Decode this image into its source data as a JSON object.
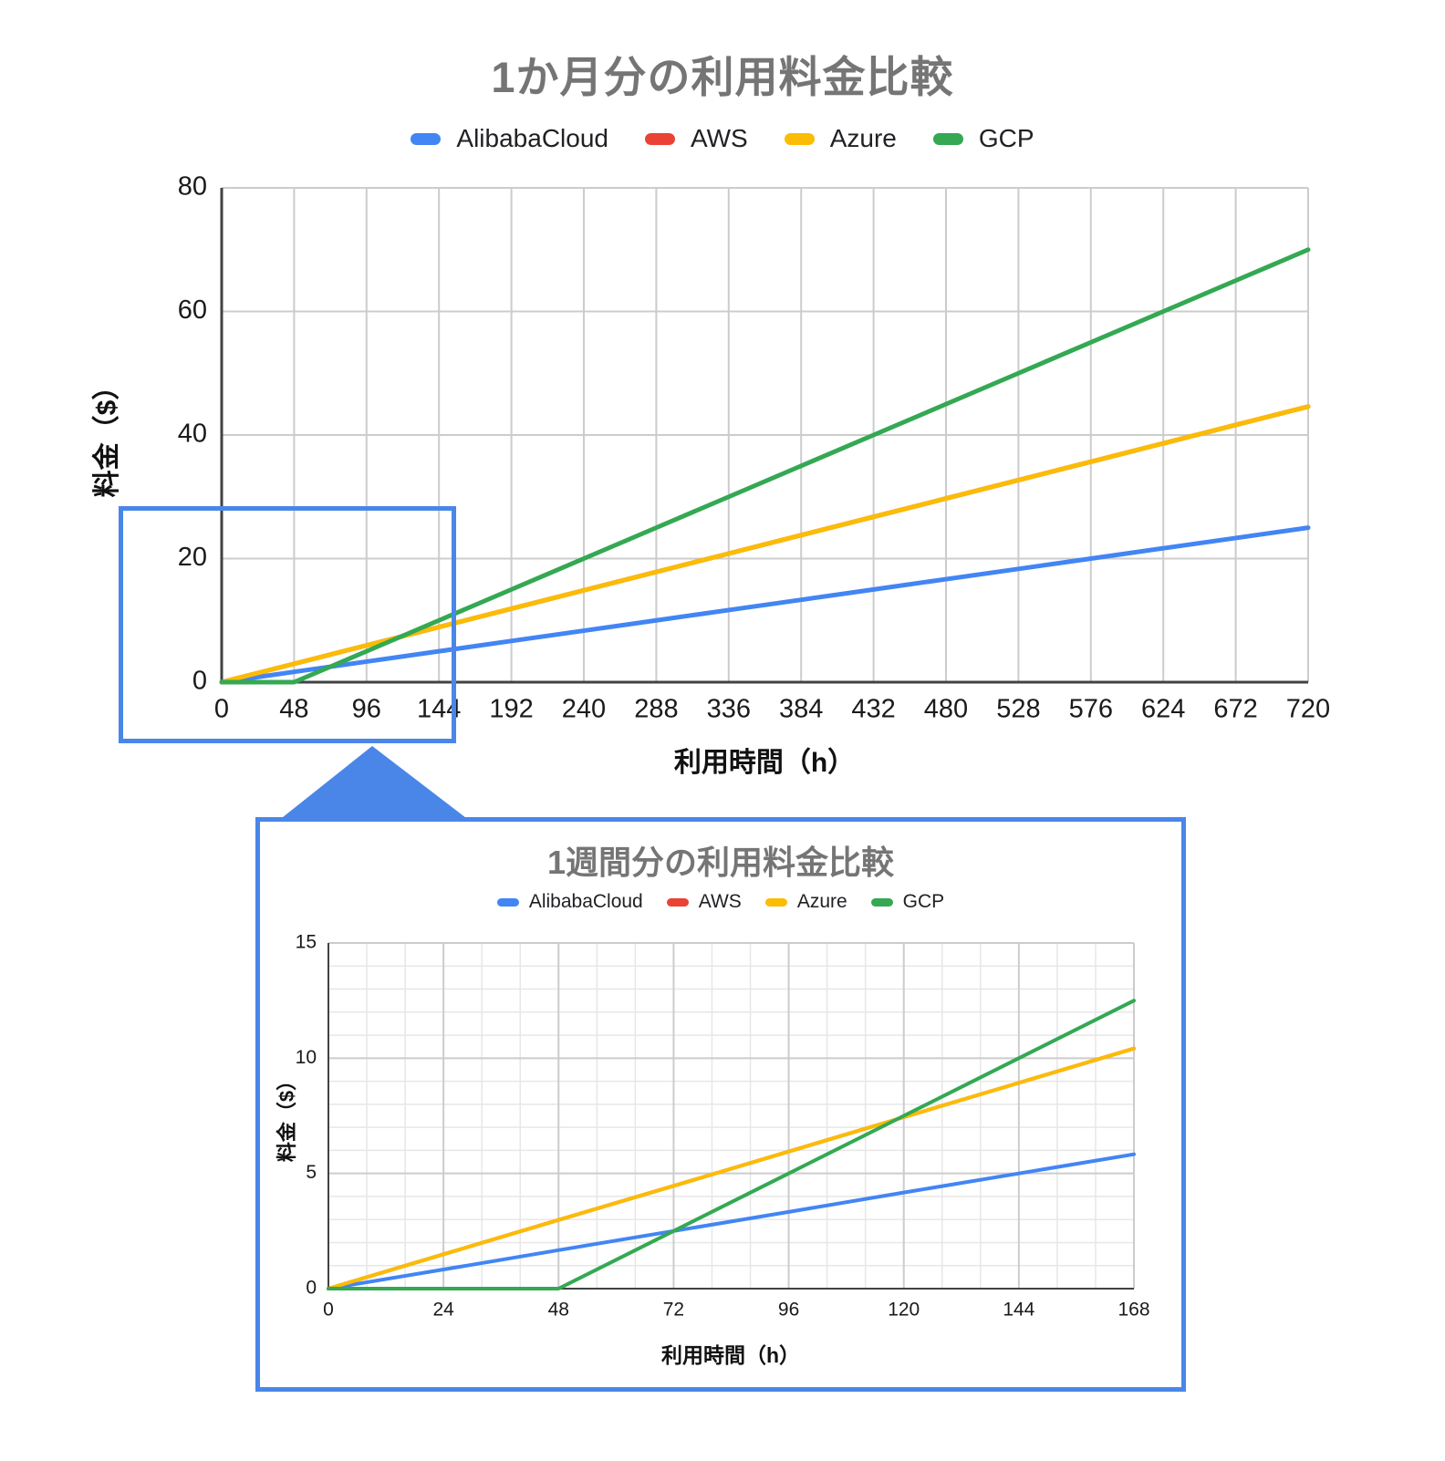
{
  "zoom_callout": {
    "color": "#4a86e8",
    "purpose": "highlights the 0-168h region of the monthly chart that is enlarged in the weekly inset chart"
  },
  "palette": {
    "title_gray": "#757575",
    "tick_color": "#1a1a1a",
    "axis_color": "#424242",
    "grid_major": "#cccccc",
    "grid_minor": "#e7e7e7"
  },
  "chart_data": [
    {
      "id": "monthly",
      "type": "line",
      "title": "1か月分の利用料金比較",
      "xlabel": "利用時間（h）",
      "ylabel": "料金（$）",
      "xlim": [
        0,
        720
      ],
      "ylim": [
        0,
        80
      ],
      "x_ticks": [
        0,
        48,
        96,
        144,
        192,
        240,
        288,
        336,
        384,
        432,
        480,
        528,
        576,
        624,
        672,
        720
      ],
      "y_ticks": [
        0,
        20,
        40,
        60,
        80
      ],
      "grid": {
        "x_major": 48,
        "y_major": 20
      },
      "legend_position": "top",
      "x": [
        0,
        48,
        96,
        144,
        192,
        240,
        288,
        336,
        384,
        432,
        480,
        528,
        576,
        624,
        672,
        720
      ],
      "series": [
        {
          "name": "AlibabaCloud",
          "color": "#4285F4",
          "values": [
            0,
            1.67,
            3.33,
            5,
            6.67,
            8.33,
            10,
            11.67,
            13.33,
            15,
            16.67,
            18.33,
            20,
            21.67,
            23.33,
            25
          ]
        },
        {
          "name": "AWS",
          "color": "#EA4335",
          "values": [
            0,
            2.97,
            5.95,
            8.92,
            11.89,
            14.87,
            17.84,
            20.81,
            23.79,
            26.76,
            29.73,
            32.71,
            35.68,
            38.65,
            41.63,
            44.6
          ]
        },
        {
          "name": "Azure",
          "color": "#FBBC04",
          "values": [
            0,
            2.97,
            5.95,
            8.92,
            11.89,
            14.87,
            17.84,
            20.81,
            23.79,
            26.76,
            29.73,
            32.71,
            35.68,
            38.65,
            41.63,
            44.6
          ]
        },
        {
          "name": "GCP",
          "color": "#34A853",
          "values": [
            0,
            0,
            5,
            10,
            15,
            20,
            25,
            30,
            35,
            40,
            45,
            50,
            55,
            60,
            65,
            70
          ]
        }
      ]
    },
    {
      "id": "weekly",
      "type": "line",
      "title": "1週間分の利用料金比較",
      "xlabel": "利用時間（h）",
      "ylabel": "料金（$）",
      "xlim": [
        0,
        168
      ],
      "ylim": [
        0,
        15
      ],
      "x_ticks": [
        0,
        24,
        48,
        72,
        96,
        120,
        144,
        168
      ],
      "y_ticks": [
        0,
        5,
        10,
        15
      ],
      "grid": {
        "x_major": 24,
        "x_minor": 8,
        "y_major": 5,
        "y_minor": 1
      },
      "legend_position": "top",
      "x": [
        0,
        24,
        48,
        72,
        96,
        120,
        144,
        168
      ],
      "series": [
        {
          "name": "AlibabaCloud",
          "color": "#4285F4",
          "values": [
            0,
            0.83,
            1.67,
            2.5,
            3.33,
            4.17,
            5,
            5.83
          ]
        },
        {
          "name": "AWS",
          "color": "#EA4335",
          "values": [
            0,
            1.49,
            2.98,
            4.46,
            5.95,
            7.44,
            8.93,
            10.42
          ]
        },
        {
          "name": "Azure",
          "color": "#FBBC04",
          "values": [
            0,
            1.49,
            2.98,
            4.46,
            5.95,
            7.44,
            8.93,
            10.42
          ]
        },
        {
          "name": "GCP",
          "color": "#34A853",
          "values": [
            0,
            0,
            0,
            2.5,
            5,
            7.5,
            10,
            12.5
          ]
        }
      ]
    }
  ]
}
